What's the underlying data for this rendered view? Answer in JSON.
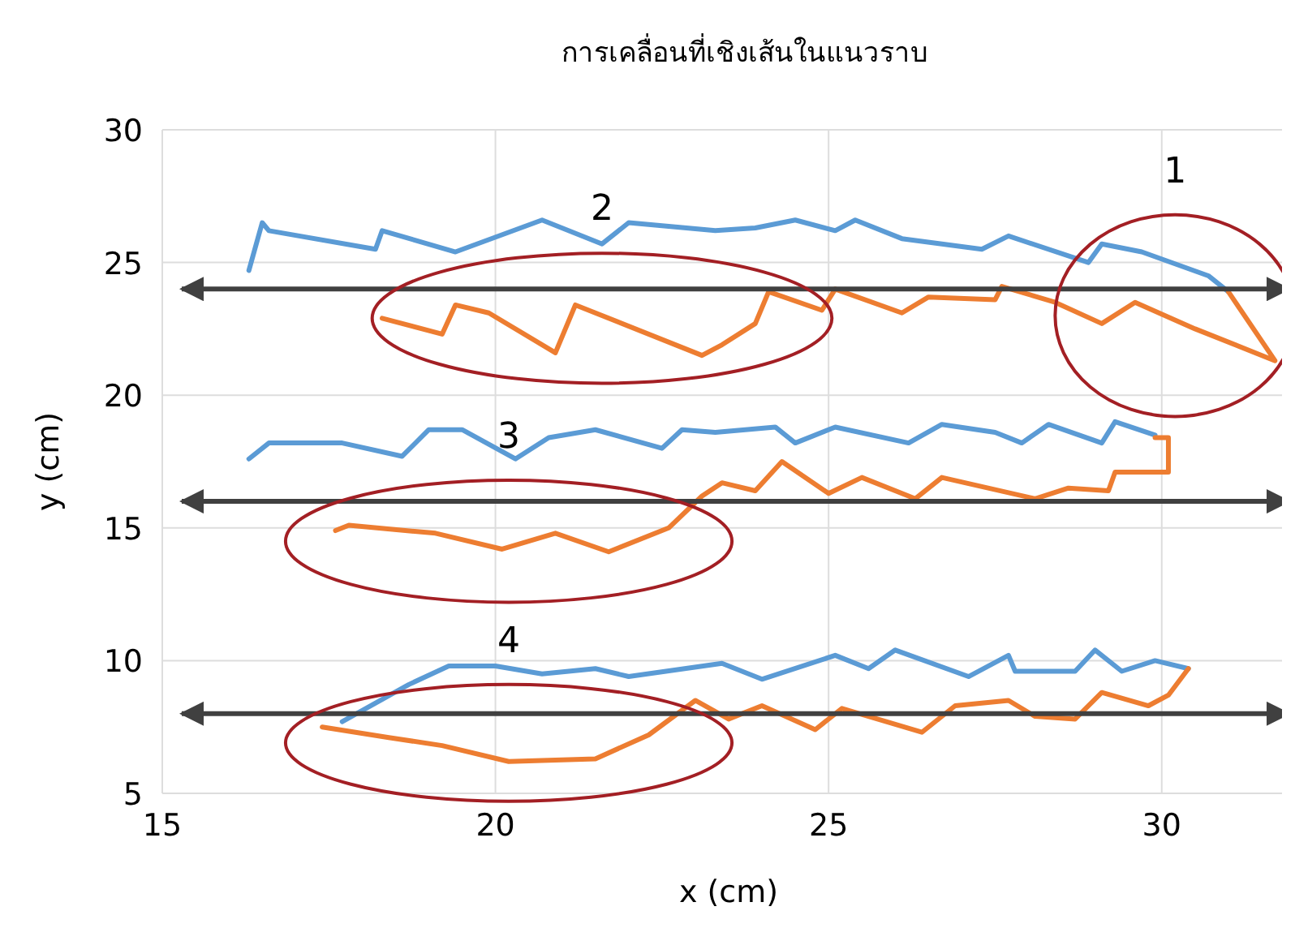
{
  "chart_data": {
    "type": "line",
    "title": "การเคลื่อนที่เชิงเส้นในแนวราบ",
    "xlabel": "x (cm)",
    "ylabel": "y (cm)",
    "xlim": [
      15,
      32
    ],
    "ylim": [
      5,
      30
    ],
    "xticks": [
      15,
      20,
      25,
      30
    ],
    "yticks": [
      5,
      10,
      15,
      20,
      25,
      30
    ],
    "grid": true,
    "marker": "none",
    "line_style": "solid",
    "series": [
      {
        "color": "#5b9bd5",
        "x": [
          16.3,
          16.5,
          16.6,
          18.2,
          18.3,
          19.4,
          20.7,
          21.6,
          22.0,
          23.3,
          23.9,
          24.5,
          25.1,
          25.4,
          26.1,
          27.3,
          27.7,
          28.9,
          29.1,
          29.7,
          30.7,
          31.0
        ],
        "values": [
          24.7,
          26.5,
          26.2,
          25.5,
          26.2,
          25.4,
          26.6,
          25.7,
          26.5,
          26.2,
          26.3,
          26.6,
          26.2,
          26.6,
          25.9,
          25.5,
          26.0,
          25.0,
          25.7,
          25.4,
          24.5,
          23.9
        ]
      },
      {
        "color": "#ed7d31",
        "x": [
          18.3,
          19.2,
          19.4,
          19.9,
          20.9,
          21.2,
          23.1,
          23.4,
          23.9,
          24.1,
          24.9,
          25.1,
          26.1,
          26.5,
          27.5,
          27.6,
          28.4,
          29.1,
          29.6,
          30.5,
          31.7,
          31.0
        ],
        "values": [
          22.9,
          22.3,
          23.4,
          23.1,
          21.6,
          23.4,
          21.5,
          21.9,
          22.7,
          23.9,
          23.2,
          24.0,
          23.1,
          23.7,
          23.6,
          24.1,
          23.5,
          22.7,
          23.5,
          22.5,
          21.3,
          23.9
        ]
      },
      {
        "color": "#5b9bd5",
        "x": [
          16.3,
          16.6,
          17.7,
          18.6,
          19.0,
          19.5,
          20.3,
          20.8,
          21.5,
          22.5,
          22.8,
          23.3,
          24.2,
          24.5,
          25.1,
          26.2,
          26.7,
          27.5,
          27.9,
          28.3,
          29.1,
          29.3,
          29.9
        ],
        "values": [
          17.6,
          18.2,
          18.2,
          17.7,
          18.7,
          18.7,
          17.6,
          18.4,
          18.7,
          18.0,
          18.7,
          18.6,
          18.8,
          18.2,
          18.8,
          18.2,
          18.9,
          18.6,
          18.2,
          18.9,
          18.2,
          19.0,
          18.5
        ]
      },
      {
        "color": "#ed7d31",
        "x": [
          17.6,
          17.8,
          19.1,
          20.1,
          20.9,
          21.7,
          22.6,
          23.1,
          23.4,
          23.9,
          24.3,
          25.0,
          25.5,
          26.3,
          26.7,
          28.1,
          28.6,
          29.2,
          29.3,
          30.1,
          30.1,
          29.9
        ],
        "values": [
          14.9,
          15.1,
          14.8,
          14.2,
          14.8,
          14.1,
          15.0,
          16.2,
          16.7,
          16.4,
          17.5,
          16.3,
          16.9,
          16.1,
          16.9,
          16.1,
          16.5,
          16.4,
          17.1,
          17.1,
          18.4,
          18.4
        ]
      },
      {
        "color": "#5b9bd5",
        "x": [
          17.7,
          18.7,
          19.3,
          20.0,
          20.7,
          21.5,
          22.0,
          23.4,
          24.0,
          25.1,
          25.6,
          26.0,
          27.1,
          27.7,
          27.8,
          28.7,
          29.0,
          29.4,
          29.9,
          30.4
        ],
        "values": [
          7.7,
          9.1,
          9.8,
          9.8,
          9.5,
          9.7,
          9.4,
          9.9,
          9.3,
          10.2,
          9.7,
          10.4,
          9.4,
          10.2,
          9.6,
          9.6,
          10.4,
          9.6,
          10.0,
          9.7
        ]
      },
      {
        "color": "#ed7d31",
        "x": [
          17.4,
          18.4,
          19.2,
          20.2,
          21.5,
          22.3,
          23.0,
          23.5,
          24.0,
          24.8,
          25.2,
          26.4,
          26.9,
          27.7,
          28.1,
          28.7,
          29.1,
          29.8,
          30.1,
          30.4
        ],
        "values": [
          7.5,
          7.1,
          6.8,
          6.2,
          6.3,
          7.2,
          8.5,
          7.8,
          8.3,
          7.4,
          8.2,
          7.3,
          8.3,
          8.5,
          7.9,
          7.8,
          8.8,
          8.3,
          8.7,
          9.7
        ]
      }
    ],
    "ref_lines": [
      {
        "axis": "y",
        "value": 24,
        "color": "#404040"
      },
      {
        "axis": "y",
        "value": 16,
        "color": "#404040"
      },
      {
        "axis": "y",
        "value": 8,
        "color": "#404040"
      }
    ],
    "annotations": [
      "1",
      "2",
      "3",
      "4"
    ]
  }
}
